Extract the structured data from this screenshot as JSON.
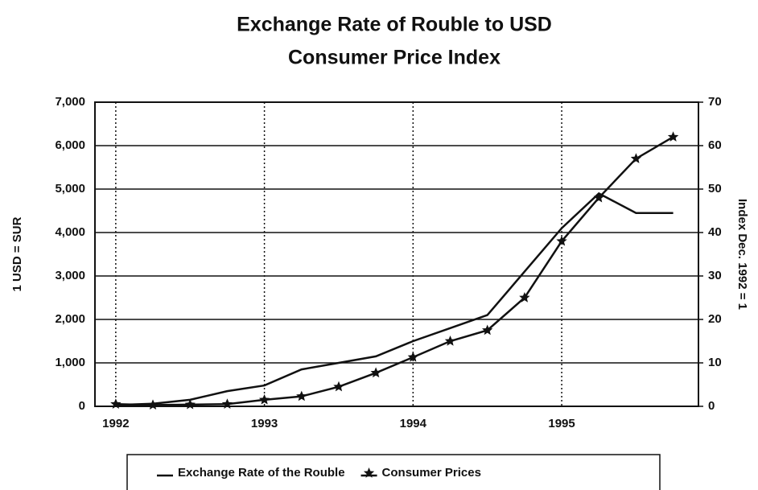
{
  "chart_data": {
    "type": "line",
    "title": "Exchange Rate of Rouble to USD",
    "subtitle": "Consumer Price Index",
    "y_label": "1 USD = SUR",
    "y2_label": "Index Dec. 1992 = 1",
    "x": [
      1992,
      1992.25,
      1992.5,
      1992.75,
      1993,
      1993.25,
      1993.5,
      1993.75,
      1994,
      1994.25,
      1994.5,
      1994.75,
      1995,
      1995.25,
      1995.5,
      1995.75
    ],
    "series": [
      {
        "name": "Exchange Rate of the Rouble",
        "color": "#111111",
        "marker": "none",
        "values": [
          30,
          60,
          150,
          350,
          480,
          850,
          1000,
          1150,
          1500,
          1800,
          2100,
          3100,
          4100,
          4900,
          4450,
          4450
        ]
      },
      {
        "name": "Consumer Prices",
        "color": "#111111",
        "marker": "star",
        "axis": "y2",
        "values": [
          0.5,
          0.3,
          0.4,
          0.5,
          1.5,
          2.3,
          4.5,
          7.7,
          11.3,
          15,
          17.5,
          25,
          38,
          48,
          57,
          62
        ]
      }
    ],
    "xlim": [
      1991.86,
      1995.92
    ],
    "xticks": [
      1992,
      1993,
      1994,
      1995
    ],
    "ylim": [
      0,
      7000
    ],
    "yticks": [
      0,
      {
        "value": 1000,
        "label": "1,000"
      },
      {
        "value": 2000,
        "label": "2,000"
      },
      {
        "value": 3000,
        "label": "3,000"
      },
      {
        "value": 4000,
        "label": "4,000"
      },
      {
        "value": 5000,
        "label": "5,000"
      },
      {
        "value": 6000,
        "label": "6,000"
      },
      {
        "value": 7000,
        "label": "7,000"
      }
    ],
    "y2lim": [
      0,
      70
    ],
    "y2ticks": [
      0,
      10,
      20,
      30,
      40,
      50,
      60,
      70
    ],
    "grid": true,
    "legend": "bottom"
  }
}
